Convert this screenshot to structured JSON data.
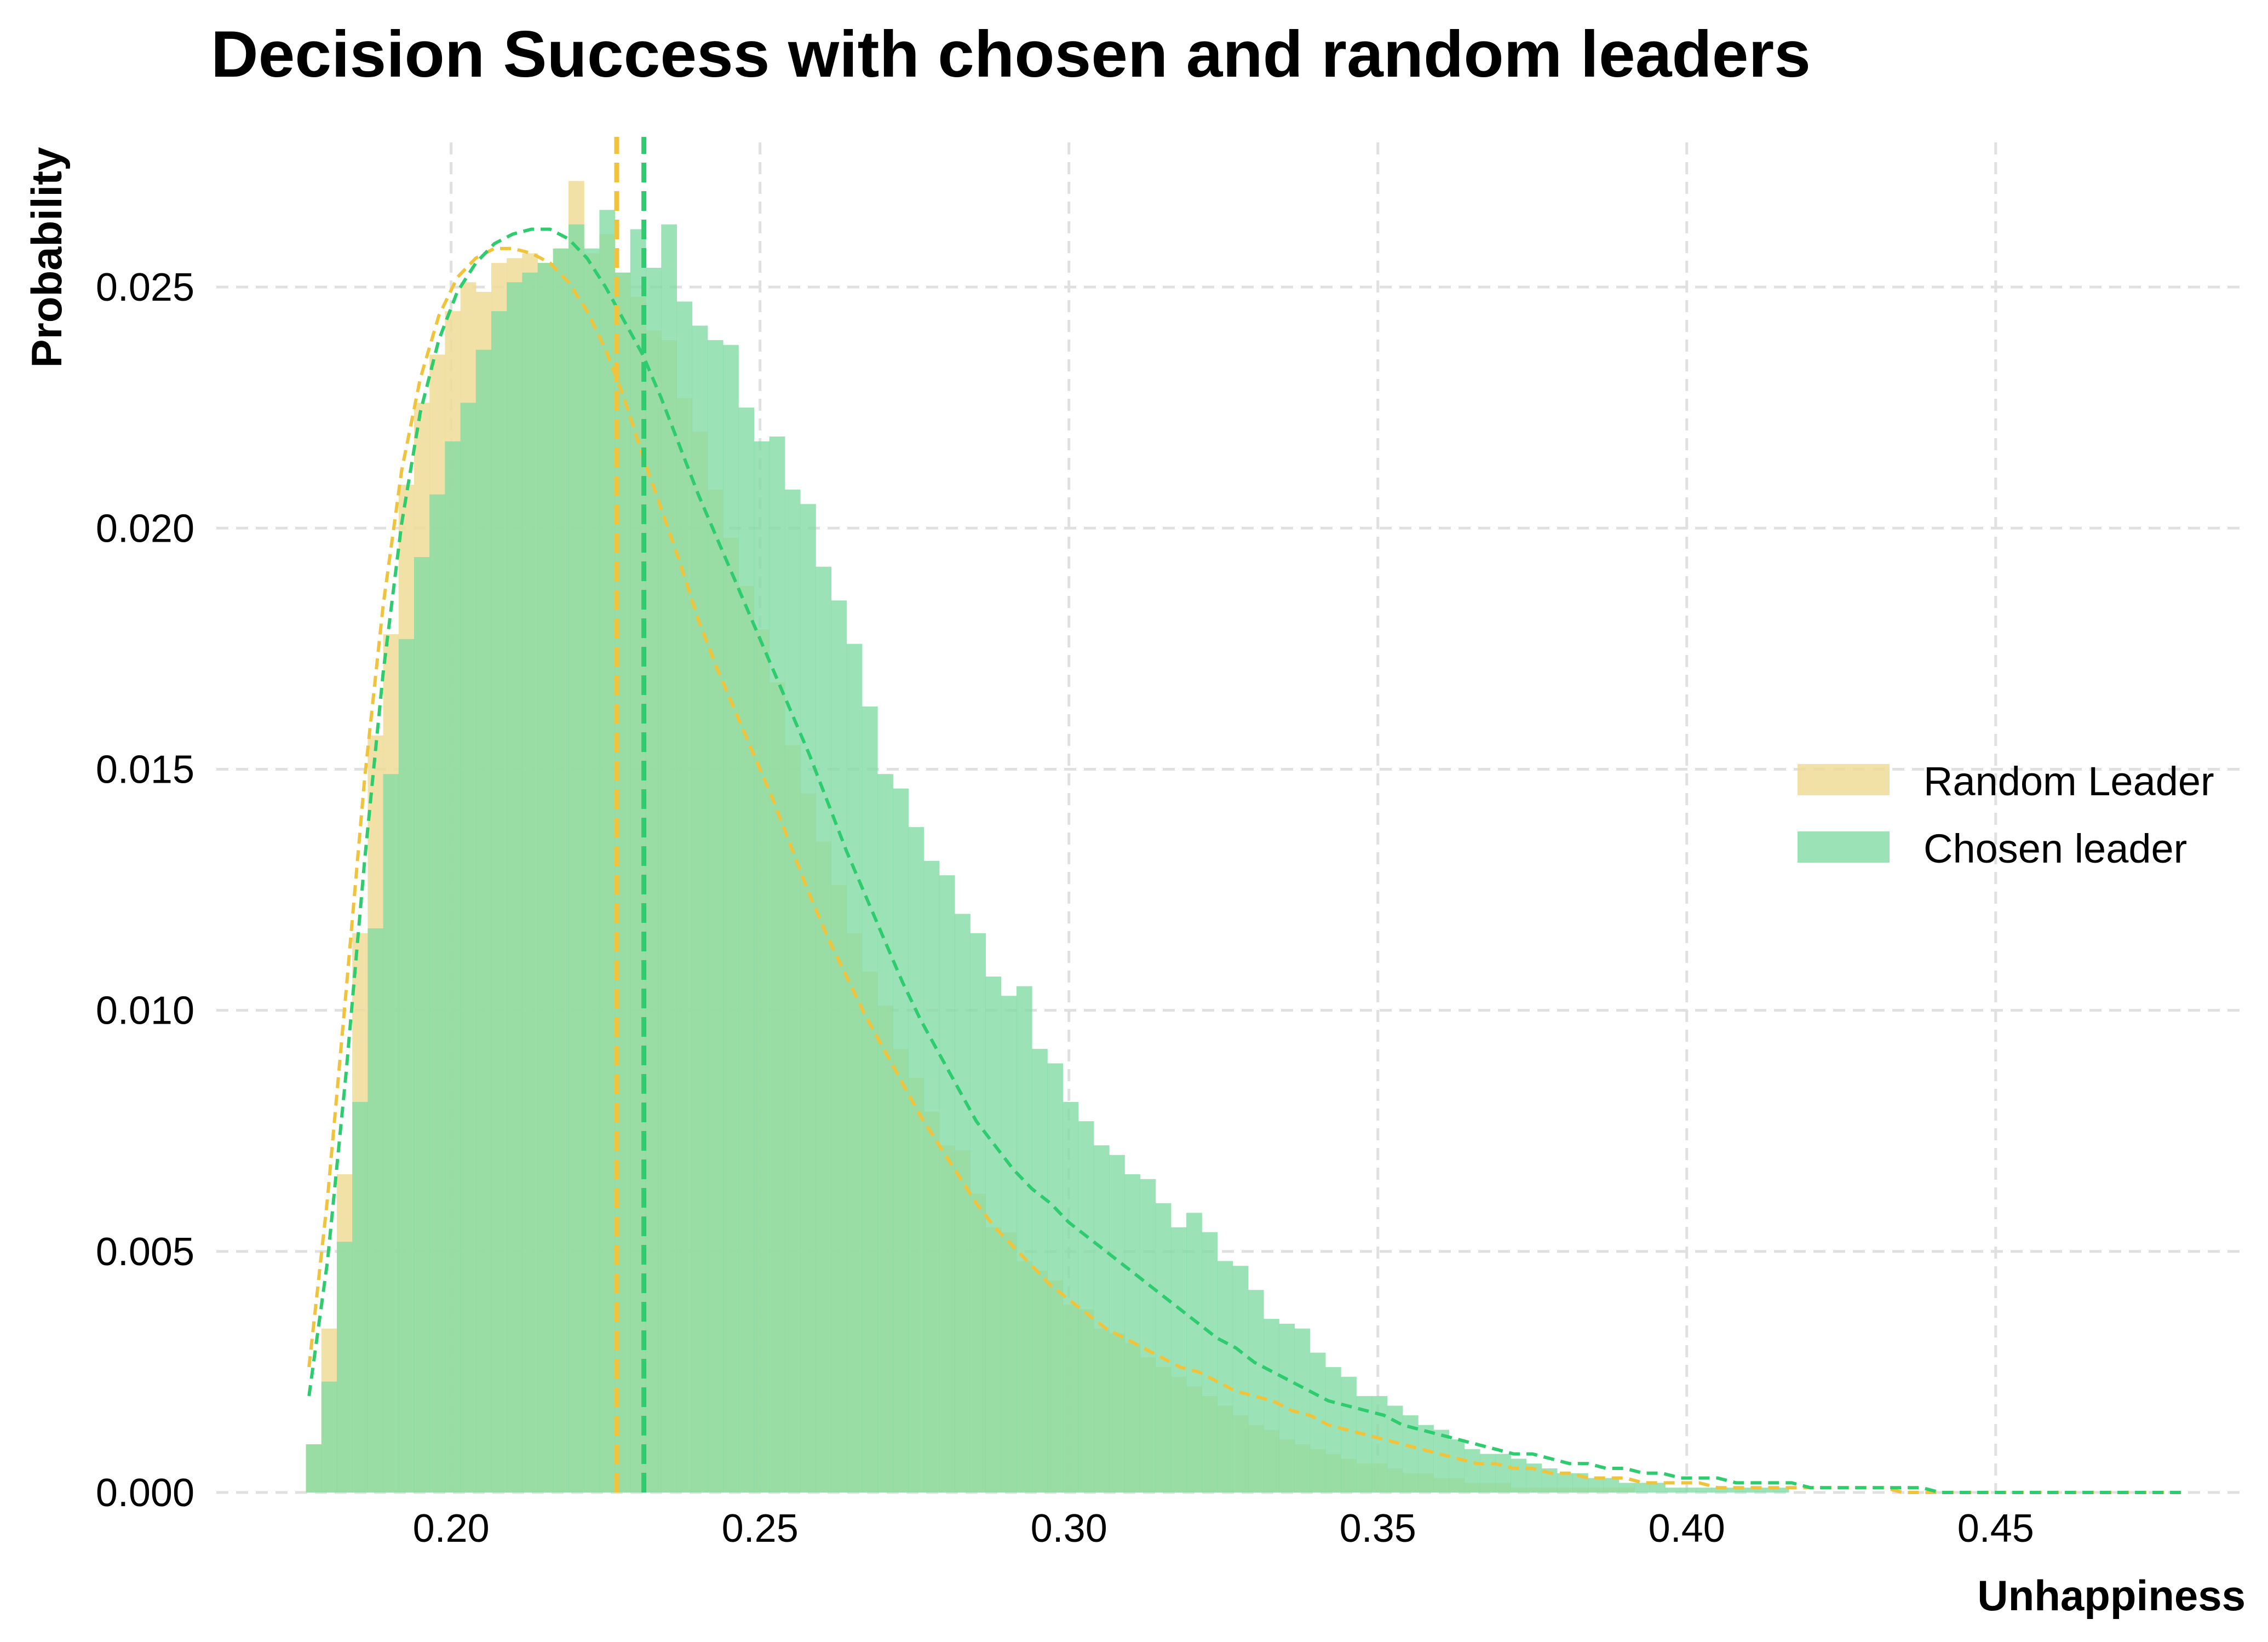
{
  "chart_data": {
    "type": "histogram",
    "title": "Decision Success with chosen and random leaders",
    "xlabel": "Unhappiness",
    "ylabel": "Probability",
    "xlim": [
      0.162,
      0.49
    ],
    "ylim": [
      0,
      0.028
    ],
    "xticks": [
      "0.20",
      "0.25",
      "0.30",
      "0.35",
      "0.40",
      "0.45"
    ],
    "yticks": [
      "0.000",
      "0.005",
      "0.010",
      "0.015",
      "0.020",
      "0.025"
    ],
    "grid": true,
    "legend_position": "center-right",
    "bin_width": 0.0025,
    "bin_start": 0.1765,
    "series": [
      {
        "name": "Random Leader",
        "color": "#f0dc96",
        "alpha": 0.85,
        "mean": 0.2268,
        "values": [
          0.001,
          0.0034,
          0.0066,
          0.0116,
          0.0157,
          0.0178,
          0.0209,
          0.0226,
          0.0236,
          0.0245,
          0.0251,
          0.0249,
          0.0255,
          0.0256,
          0.0257,
          0.0255,
          0.0258,
          0.0272,
          0.0257,
          0.0261,
          0.0253,
          0.0248,
          0.0241,
          0.0239,
          0.0227,
          0.022,
          0.0208,
          0.0198,
          0.0188,
          0.0179,
          0.0168,
          0.0155,
          0.0145,
          0.0135,
          0.0126,
          0.0116,
          0.0108,
          0.0101,
          0.0092,
          0.0086,
          0.0079,
          0.0072,
          0.0071,
          0.0062,
          0.0055,
          0.0054,
          0.0048,
          0.0046,
          0.0044,
          0.0039,
          0.0038,
          0.0034,
          0.0033,
          0.0031,
          0.0028,
          0.0026,
          0.0024,
          0.0022,
          0.002,
          0.0018,
          0.0016,
          0.0014,
          0.0013,
          0.0011,
          0.001,
          0.0009,
          0.0008,
          0.0007,
          0.0006,
          0.0006,
          0.0005,
          0.0004,
          0.0004,
          0.0003,
          0.0003,
          0.0002,
          0.0002,
          0.0002,
          0.0001,
          0.0001,
          0.0001,
          0.0001,
          0.0001,
          0.0001,
          0.0001,
          0.0001,
          0.0,
          0.0,
          0.0,
          0.0,
          0.0,
          0.0,
          0.0,
          0.0,
          0.0,
          0.0,
          0.0,
          0.0,
          0.0,
          0.0,
          0.0,
          0.0,
          0.0,
          0.0,
          0.0,
          0.0,
          0.0,
          0.0,
          0.0,
          0.0,
          0.0,
          0.0,
          0.0,
          0.0,
          0.0,
          0.0,
          0.0,
          0.0,
          0.0,
          0.0,
          0.0
        ]
      },
      {
        "name": "Chosen leader",
        "color": "#82dca5",
        "alpha": 0.8,
        "mean": 0.2312,
        "values": [
          0.001,
          0.0023,
          0.0052,
          0.0081,
          0.0117,
          0.0149,
          0.0177,
          0.0194,
          0.0207,
          0.0218,
          0.0226,
          0.0237,
          0.0245,
          0.0251,
          0.0253,
          0.0255,
          0.0258,
          0.0263,
          0.0258,
          0.0266,
          0.0253,
          0.0262,
          0.0254,
          0.0263,
          0.0247,
          0.0242,
          0.0239,
          0.0238,
          0.0225,
          0.0218,
          0.0219,
          0.0208,
          0.0205,
          0.0192,
          0.0185,
          0.0176,
          0.0163,
          0.0149,
          0.0146,
          0.0138,
          0.0131,
          0.0128,
          0.012,
          0.0116,
          0.0107,
          0.0103,
          0.0105,
          0.0092,
          0.0089,
          0.0081,
          0.0077,
          0.0072,
          0.007,
          0.0066,
          0.0065,
          0.006,
          0.0055,
          0.0058,
          0.0054,
          0.0048,
          0.0047,
          0.0042,
          0.0036,
          0.0035,
          0.0034,
          0.0029,
          0.0026,
          0.0024,
          0.002,
          0.002,
          0.0018,
          0.0016,
          0.0014,
          0.0013,
          0.0011,
          0.0009,
          0.0008,
          0.0008,
          0.0007,
          0.0006,
          0.0005,
          0.0004,
          0.0004,
          0.0003,
          0.0003,
          0.0002,
          0.0002,
          0.0002,
          0.0001,
          0.0001,
          0.0001,
          0.0001,
          0.0001,
          0.0001,
          0.0001,
          0.0001,
          0.0,
          0.0,
          0.0,
          0.0,
          0.0,
          0.0,
          0.0,
          0.0,
          0.0,
          0.0,
          0.0,
          0.0,
          0.0,
          0.0,
          0.0,
          0.0,
          0.0,
          0.0,
          0.0,
          0.0,
          0.0,
          0.0,
          0.0,
          0.0,
          0.0
        ]
      }
    ],
    "kde": [
      {
        "series": "Random Leader",
        "color": "#f0c33c",
        "x": [
          0.177,
          0.18,
          0.183,
          0.186,
          0.189,
          0.192,
          0.195,
          0.198,
          0.201,
          0.204,
          0.207,
          0.21,
          0.213,
          0.216,
          0.219,
          0.222,
          0.225,
          0.228,
          0.231,
          0.234,
          0.237,
          0.24,
          0.243,
          0.246,
          0.249,
          0.252,
          0.255,
          0.258,
          0.261,
          0.264,
          0.267,
          0.27,
          0.273,
          0.276,
          0.279,
          0.282,
          0.285,
          0.288,
          0.291,
          0.294,
          0.297,
          0.3,
          0.303,
          0.306,
          0.309,
          0.312,
          0.315,
          0.318,
          0.321,
          0.324,
          0.327,
          0.33,
          0.333,
          0.336,
          0.339,
          0.342,
          0.345,
          0.348,
          0.351,
          0.354,
          0.357,
          0.36,
          0.363,
          0.366,
          0.369,
          0.372,
          0.375,
          0.378,
          0.381,
          0.384,
          0.387,
          0.39,
          0.393,
          0.396,
          0.399,
          0.402,
          0.405,
          0.408,
          0.411,
          0.414,
          0.417,
          0.42,
          0.423,
          0.426,
          0.429,
          0.432,
          0.435,
          0.438,
          0.441,
          0.444,
          0.447,
          0.45,
          0.453,
          0.456,
          0.459,
          0.462,
          0.465,
          0.468,
          0.471,
          0.474,
          0.477,
          0.48
        ],
        "y": [
          0.0026,
          0.0061,
          0.0104,
          0.0148,
          0.0184,
          0.0212,
          0.0231,
          0.0244,
          0.0252,
          0.0256,
          0.0258,
          0.0258,
          0.0257,
          0.0255,
          0.0251,
          0.0245,
          0.0237,
          0.0227,
          0.0215,
          0.0204,
          0.0193,
          0.0181,
          0.0171,
          0.0162,
          0.0153,
          0.0144,
          0.0134,
          0.0124,
          0.0115,
          0.0107,
          0.0099,
          0.0092,
          0.0085,
          0.0078,
          0.0072,
          0.0066,
          0.006,
          0.0055,
          0.0051,
          0.0047,
          0.0043,
          0.004,
          0.0037,
          0.0034,
          0.0032,
          0.003,
          0.0028,
          0.0026,
          0.0025,
          0.0023,
          0.0021,
          0.002,
          0.0019,
          0.0017,
          0.0016,
          0.0014,
          0.0013,
          0.0012,
          0.0011,
          0.001,
          0.0009,
          0.0008,
          0.0007,
          0.0006,
          0.0006,
          0.0005,
          0.0005,
          0.0004,
          0.0004,
          0.0003,
          0.0003,
          0.0003,
          0.0002,
          0.0002,
          0.0002,
          0.0002,
          0.0001,
          0.0001,
          0.0001,
          0.0001,
          0.0001,
          0.0001,
          0.0001,
          0.0001,
          0.0001,
          0.0001,
          0.0,
          0.0,
          0.0,
          0.0,
          0.0,
          0.0,
          0.0,
          0.0,
          0.0,
          0.0,
          0.0,
          0.0,
          0.0,
          0.0,
          0.0,
          0.0
        ]
      },
      {
        "series": "Chosen leader",
        "color": "#2ecc6e",
        "x": [
          0.177,
          0.18,
          0.183,
          0.186,
          0.189,
          0.192,
          0.195,
          0.198,
          0.201,
          0.204,
          0.207,
          0.21,
          0.213,
          0.216,
          0.219,
          0.222,
          0.225,
          0.228,
          0.231,
          0.234,
          0.237,
          0.24,
          0.243,
          0.246,
          0.249,
          0.252,
          0.255,
          0.258,
          0.261,
          0.264,
          0.267,
          0.27,
          0.273,
          0.276,
          0.279,
          0.282,
          0.285,
          0.288,
          0.291,
          0.294,
          0.297,
          0.3,
          0.303,
          0.306,
          0.309,
          0.312,
          0.315,
          0.318,
          0.321,
          0.324,
          0.327,
          0.33,
          0.333,
          0.336,
          0.339,
          0.342,
          0.345,
          0.348,
          0.351,
          0.354,
          0.357,
          0.36,
          0.363,
          0.366,
          0.369,
          0.372,
          0.375,
          0.378,
          0.381,
          0.384,
          0.387,
          0.39,
          0.393,
          0.396,
          0.399,
          0.402,
          0.405,
          0.408,
          0.411,
          0.414,
          0.417,
          0.42,
          0.423,
          0.426,
          0.429,
          0.432,
          0.435,
          0.438,
          0.441,
          0.444,
          0.447,
          0.45,
          0.453,
          0.456,
          0.459,
          0.462,
          0.465,
          0.468,
          0.471,
          0.474,
          0.477,
          0.48
        ],
        "y": [
          0.002,
          0.0048,
          0.0087,
          0.0131,
          0.017,
          0.0201,
          0.0224,
          0.0239,
          0.0249,
          0.0255,
          0.0259,
          0.0261,
          0.0262,
          0.0262,
          0.026,
          0.0256,
          0.025,
          0.0243,
          0.0236,
          0.0227,
          0.0217,
          0.0207,
          0.0198,
          0.0189,
          0.018,
          0.0171,
          0.0162,
          0.0153,
          0.0143,
          0.0133,
          0.0124,
          0.0115,
          0.0106,
          0.0098,
          0.0091,
          0.0084,
          0.0077,
          0.0072,
          0.0067,
          0.0063,
          0.006,
          0.0056,
          0.0053,
          0.005,
          0.0047,
          0.0044,
          0.0041,
          0.0038,
          0.0035,
          0.0032,
          0.003,
          0.0027,
          0.0025,
          0.0023,
          0.0021,
          0.0019,
          0.0018,
          0.0017,
          0.0016,
          0.0014,
          0.0013,
          0.0012,
          0.0011,
          0.001,
          0.0009,
          0.0008,
          0.0008,
          0.0007,
          0.0006,
          0.0006,
          0.0005,
          0.0005,
          0.0004,
          0.0004,
          0.0003,
          0.0003,
          0.0003,
          0.0002,
          0.0002,
          0.0002,
          0.0002,
          0.0001,
          0.0001,
          0.0001,
          0.0001,
          0.0001,
          0.0001,
          0.0001,
          0.0,
          0.0,
          0.0,
          0.0,
          0.0,
          0.0,
          0.0,
          0.0,
          0.0,
          0.0,
          0.0,
          0.0,
          0.0,
          0.0
        ]
      }
    ]
  }
}
